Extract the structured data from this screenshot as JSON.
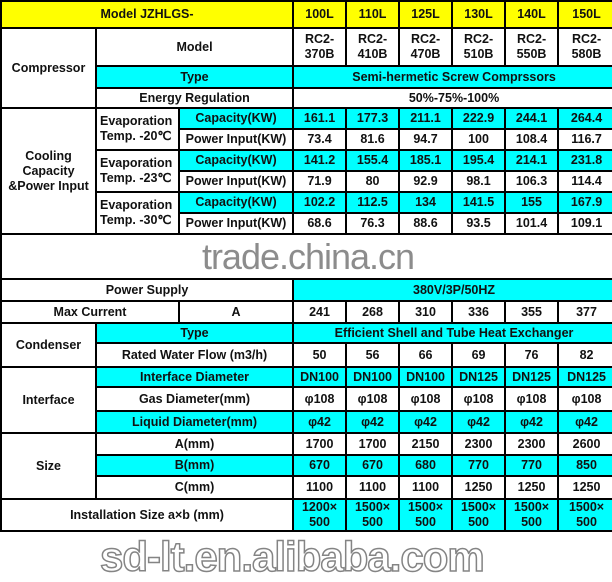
{
  "header": {
    "title": "Model JZHLGS-",
    "models": [
      "100L",
      "110L",
      "125L",
      "130L",
      "140L",
      "150L"
    ]
  },
  "compressor": {
    "label": "Compressor",
    "model_label": "Model",
    "models": [
      "RC2-\n370B",
      "RC2-\n410B",
      "RC2-\n470B",
      "RC2-\n510B",
      "RC2-\n550B",
      "RC2-\n580B"
    ],
    "type_label": "Type",
    "type_value": "Semi-hermetic Screw Comprssors",
    "energy_label": "Energy Regulation",
    "energy_value": "50%-75%-100%"
  },
  "cooling": {
    "label": "Cooling\nCapacity\n&Power Input",
    "groups": [
      {
        "evap": "Evaporation\nTemp. -20℃",
        "capacity_label": "Capacity(KW)",
        "capacity": [
          "161.1",
          "177.3",
          "211.1",
          "222.9",
          "244.1",
          "264.4"
        ],
        "power_label": "Power Input(KW)",
        "power": [
          "73.4",
          "81.6",
          "94.7",
          "100",
          "108.4",
          "116.7"
        ]
      },
      {
        "evap": "Evaporation\nTemp. -23℃",
        "capacity_label": "Capacity(KW)",
        "capacity": [
          "141.2",
          "155.4",
          "185.1",
          "195.4",
          "214.1",
          "231.8"
        ],
        "power_label": "Power Input(KW)",
        "power": [
          "71.9",
          "80",
          "92.9",
          "98.1",
          "106.3",
          "114.4"
        ]
      },
      {
        "evap": "Evaporation\nTemp. -30℃",
        "capacity_label": "Capacity(KW)",
        "capacity": [
          "102.2",
          "112.5",
          "134",
          "141.5",
          "155",
          "167.9"
        ],
        "power_label": "Power Input(KW)",
        "power": [
          "68.6",
          "76.3",
          "88.6",
          "93.5",
          "101.4",
          "109.1"
        ]
      }
    ]
  },
  "power_supply": {
    "label": "Power Supply",
    "value": "380V/3P/50HZ"
  },
  "max_current": {
    "label": "Max Current",
    "unit": "A",
    "values": [
      "241",
      "268",
      "310",
      "336",
      "355",
      "377"
    ]
  },
  "condenser": {
    "label": "Condenser",
    "type_label": "Type",
    "type_value": "Efficient Shell and Tube Heat Exchanger",
    "flow_label": "Rated Water Flow (m3/h)",
    "flow": [
      "50",
      "56",
      "66",
      "69",
      "76",
      "82"
    ]
  },
  "interface": {
    "label": "Interface",
    "diameter_label": "Interface Diameter",
    "diameter": [
      "DN100",
      "DN100",
      "DN100",
      "DN125",
      "DN125",
      "DN125"
    ],
    "gas_label": "Gas Diameter(mm)",
    "gas": [
      "φ108",
      "φ108",
      "φ108",
      "φ108",
      "φ108",
      "φ108"
    ],
    "liquid_label": "Liquid Diameter(mm)",
    "liquid": [
      "φ42",
      "φ42",
      "φ42",
      "φ42",
      "φ42",
      "φ42"
    ]
  },
  "size": {
    "label": "Size",
    "a_label": "A(mm)",
    "a": [
      "1700",
      "1700",
      "2150",
      "2300",
      "2300",
      "2600"
    ],
    "b_label": "B(mm)",
    "b": [
      "670",
      "670",
      "680",
      "770",
      "770",
      "850"
    ],
    "c_label": "C(mm)",
    "c": [
      "1100",
      "1100",
      "1100",
      "1250",
      "1250",
      "1250"
    ]
  },
  "installation": {
    "label": "Installation Size a×b (mm)",
    "values": [
      "1200×\n500",
      "1500×\n500",
      "1500×\n500",
      "1500×\n500",
      "1500×\n500",
      "1500×\n500"
    ]
  },
  "watermarks": [
    "trade.china.cn",
    "sd-lt.en.alibaba.com"
  ],
  "colors": {
    "header": "#ffff00",
    "highlight": "#00ffff"
  }
}
